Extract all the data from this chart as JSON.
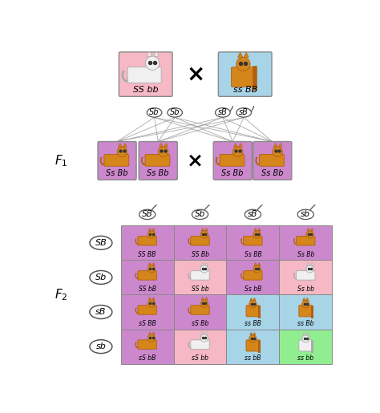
{
  "bg_color": "#ffffff",
  "parent1_bg": "#f5b8c4",
  "parent2_bg": "#a8d4e8",
  "f1_bg": "#cc88cc",
  "parent1_label": "SS bb",
  "parent2_label": "ss BB",
  "f1_label": "Ss Bb",
  "gametes_left": [
    "Sb",
    "Sb"
  ],
  "gametes_right": [
    "sB",
    "sB"
  ],
  "f2_col_labels": [
    "SB",
    "Sb",
    "sB",
    "sb"
  ],
  "f2_row_labels": [
    "SB",
    "Sb",
    "sB",
    "sb"
  ],
  "f2_cell_labels": [
    [
      "SS BB",
      "SS Bb",
      "Ss BB",
      "Ss Bb"
    ],
    [
      "SS bB",
      "SS bb",
      "Ss bB",
      "Ss bb"
    ],
    [
      "sS BB",
      "sS Bb",
      "ss BB",
      "ss Bb"
    ],
    [
      "sS bB",
      "sS bb",
      "ss bB",
      "ss bb"
    ]
  ],
  "f2_cell_colors": [
    [
      "#cc88cc",
      "#cc88cc",
      "#cc88cc",
      "#cc88cc"
    ],
    [
      "#cc88cc",
      "#f5b8c4",
      "#cc88cc",
      "#f5b8c4"
    ],
    [
      "#cc88cc",
      "#cc88cc",
      "#a8d4e8",
      "#a8d4e8"
    ],
    [
      "#cc88cc",
      "#f5b8c4",
      "#a8d4e8",
      "#90ee90"
    ]
  ],
  "f2_cat_types": [
    [
      "orange_flat",
      "orange_flat",
      "orange_flat",
      "orange_flat"
    ],
    [
      "orange_flat",
      "white_flat",
      "orange_flat",
      "white_flat"
    ],
    [
      "orange_flat",
      "orange_flat",
      "orange_tall",
      "orange_tall"
    ],
    [
      "orange_flat",
      "white_flat",
      "orange_tall",
      "white_tall"
    ]
  ],
  "orange_color": "#d4861a",
  "orange_edge": "#b06010",
  "white_color": "#f0f0f0",
  "white_edge": "#aaaaaa"
}
